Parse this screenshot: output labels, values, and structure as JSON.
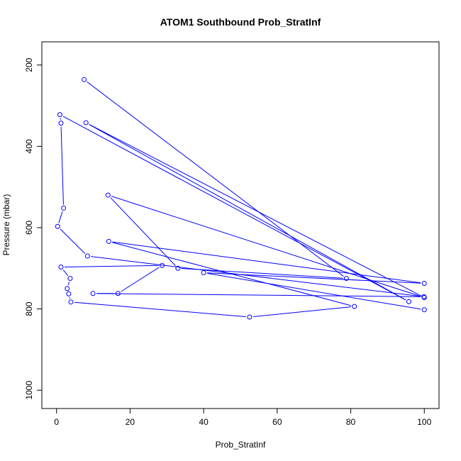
{
  "chart_data": {
    "type": "line",
    "title": "ATOM1 Southbound Prob_StratInf",
    "xlabel": "Prob_StratInf",
    "ylabel": "Pressure (mbar)",
    "xlim": [
      -4,
      104
    ],
    "ylim": [
      1045,
      143
    ],
    "y_reversed": true,
    "x_ticks": [
      0,
      20,
      40,
      60,
      80,
      100
    ],
    "y_ticks": [
      200,
      400,
      600,
      800,
      1000
    ],
    "grid": false,
    "series": [
      {
        "color": "#0000ff",
        "marker": "open-circle",
        "x": [
          7.5,
          78.8,
          33.0,
          14.0,
          100.0,
          8.0,
          95.8,
          0.9,
          1.2,
          1.9,
          0.3,
          8.4,
          99.9,
          9.9,
          16.7,
          28.7,
          1.2,
          3.7,
          2.9,
          3.3,
          3.9,
          52.5,
          81.0,
          14.2,
          100.0,
          40.0,
          100.0
        ],
        "y": [
          236,
          725,
          700,
          520,
          772,
          342,
          782,
          322,
          343,
          552,
          597,
          670,
          770,
          762,
          762,
          693,
          697,
          725,
          750,
          763,
          783,
          820,
          794,
          634,
          737,
          711,
          802
        ]
      }
    ]
  }
}
